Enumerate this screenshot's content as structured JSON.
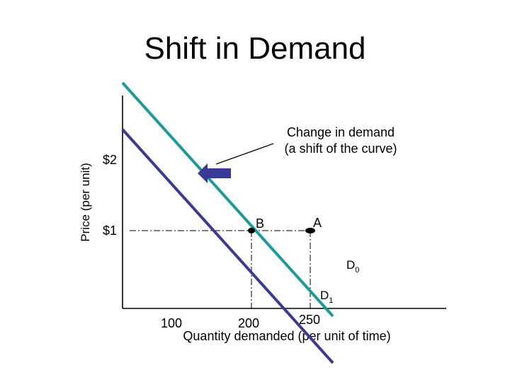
{
  "slide": {
    "title": "Shift in Demand"
  },
  "chart_data": {
    "type": "line",
    "title": "Shift in Demand",
    "xlabel": "Quantity demanded (per unit of time)",
    "ylabel": "Price (per unit)",
    "grid": false,
    "series": [
      {
        "name": "D0",
        "color": "#1a9b9b",
        "x": [
          0,
          300
        ],
        "y": [
          2.9,
          -0.1
        ]
      },
      {
        "name": "D1",
        "color": "#3a3a96",
        "x": [
          0,
          300
        ],
        "y": [
          2.3,
          -0.7
        ]
      }
    ],
    "x_ticks": [
      "100",
      "200",
      "250"
    ],
    "y_ticks": [
      "$2",
      "$1"
    ],
    "points": [
      {
        "label": "B",
        "x": 200,
        "y": 1
      },
      {
        "label": "A",
        "x": 250,
        "y": 1
      }
    ],
    "curve_labels": [
      {
        "main": "D",
        "sub": "0"
      },
      {
        "main": "D",
        "sub": "1"
      }
    ],
    "annotation": {
      "line1": "Change in demand",
      "line2": "(a shift of the curve)"
    },
    "shift_arrow": {
      "direction": "left",
      "color": "#3a3a96"
    }
  }
}
